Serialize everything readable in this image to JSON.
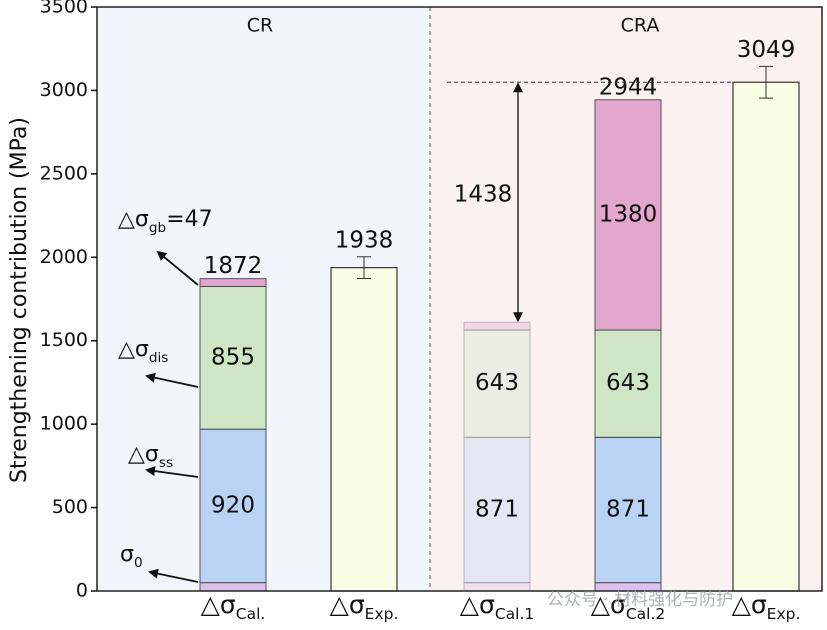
{
  "chart_data": {
    "type": "stacked_bar",
    "y_label": "Strengthening contribution (MPa)",
    "categories": [
      "△σCal.",
      "△σExp.",
      "△σCal.1",
      "△σCal.2",
      "△σExp."
    ],
    "category_opacity": [
      1,
      1,
      0.35,
      1,
      1
    ],
    "series": [
      {
        "name": "σ0",
        "color": "#d9c2ef",
        "values": [
          50,
          null,
          50,
          50,
          null
        ]
      },
      {
        "name": "△σss",
        "color": "#b9d3f4",
        "values": [
          920,
          null,
          871,
          871,
          null
        ]
      },
      {
        "name": "△σdis",
        "color": "#cfe6c6",
        "values": [
          855,
          null,
          643,
          643,
          null
        ]
      },
      {
        "name": "△σgb=47",
        "color": "#e3a6cf",
        "values": [
          47,
          null,
          47,
          1380,
          null
        ]
      }
    ],
    "totals": [
      1872,
      null,
      null,
      2944,
      null
    ],
    "experiment": {
      "color": "#fafde6",
      "values": [
        null,
        1938,
        null,
        null,
        3049
      ],
      "errors": [
        null,
        65,
        null,
        null,
        95
      ]
    },
    "gap": {
      "label": "1438",
      "value": 1438
    },
    "regions": [
      {
        "label": "CR",
        "color": "#f2f5fb"
      },
      {
        "label": "CRA",
        "color": "#fbf1f1"
      }
    ],
    "ylim": [
      0,
      3500
    ],
    "yticks": [
      0,
      500,
      1000,
      1500,
      2000,
      2500,
      3000,
      3500
    ],
    "watermark": "公众号 · 材料强化与防护"
  }
}
